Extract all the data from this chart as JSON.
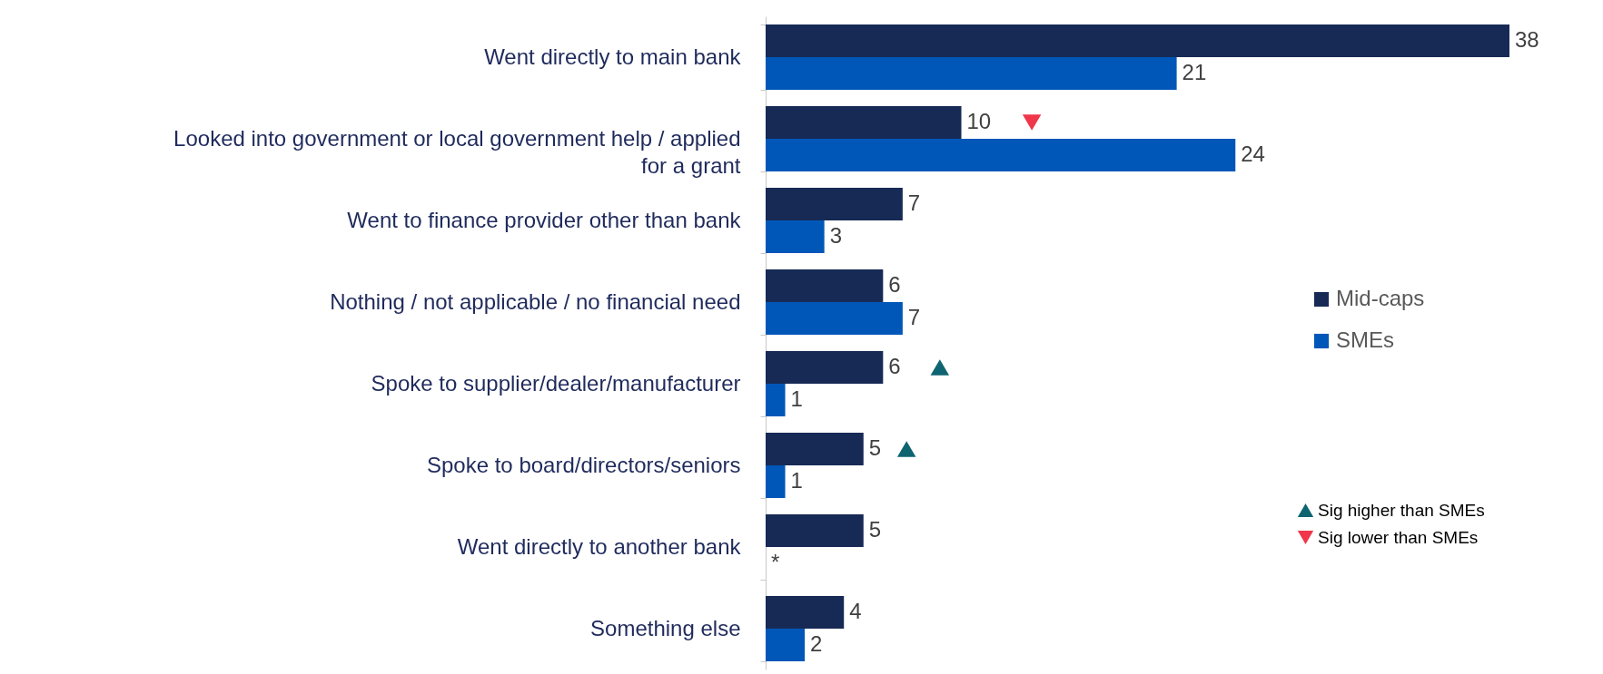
{
  "chart_data": {
    "type": "bar",
    "orientation": "horizontal",
    "legend": "right",
    "categories": [
      "Went directly to main bank",
      "Looked into government or local government help / applied for a grant",
      "Went to finance provider other than bank",
      "Nothing / not applicable / no financial need",
      "Spoke to supplier/dealer/manufacturer",
      "Spoke to board/directors/seniors",
      "Went directly to another bank",
      "Something else"
    ],
    "series": [
      {
        "name": "Mid-caps",
        "color": "#172a55",
        "values": [
          38,
          10,
          7,
          6,
          6,
          5,
          5,
          4
        ],
        "value_labels": [
          "38",
          "10",
          "7",
          "6",
          "6",
          "5",
          "5",
          "4"
        ]
      },
      {
        "name": "SMEs",
        "color": "#0057b8",
        "values": [
          21,
          24,
          3,
          7,
          1,
          1,
          0,
          2
        ],
        "value_labels": [
          "21",
          "24",
          "3",
          "7",
          "1",
          "1",
          "*",
          "2"
        ]
      },
      {
        "name": "Sig higher than SMEs",
        "type": "scatter",
        "marker": "triangle",
        "color": "#0e6470",
        "x": [
          "Spoke to supplier/dealer/manufacturer",
          "Spoke to board/directors/seniors"
        ],
        "values": [
          8.9,
          7.2
        ]
      },
      {
        "name": "Sig lower than SMEs",
        "type": "scatter",
        "marker": "triangle-down",
        "color": "#f0364a",
        "x": [
          "Looked into government or local government help / applied for a grant"
        ],
        "values": [
          13.6
        ]
      }
    ]
  }
}
